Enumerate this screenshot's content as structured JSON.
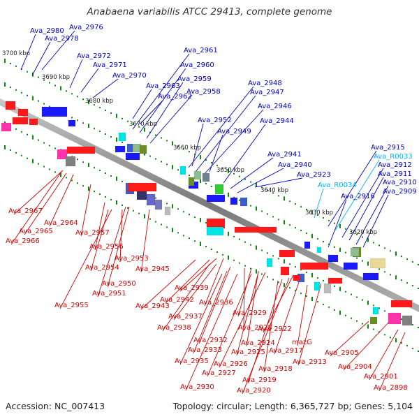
{
  "title": "Anabaena variabilis ATCC 29413, complete genome",
  "footer": {
    "accession": "Accession: NC_007413",
    "topology": "Topology: circular; Length: 6,365,727 bp; Genes: 5,104"
  },
  "colors": {
    "forward_label": "#0000c8",
    "reverse_label": "#d40000",
    "rna_label": "#00b4ff",
    "backbone": "#8a8a8a",
    "tick": "#0a8a0a"
  },
  "scale_labels": [
    "3700 kbp",
    "3690 kbp",
    "3680 kbp",
    "3670 kbp",
    "3660 kbp",
    "3650 kbp",
    "3640 kbp",
    "3630 kbp",
    "3620 kbp"
  ],
  "forward_labels": [
    "Ava_2980",
    "Ava_2976",
    "Ava_2978",
    "Ava_2972",
    "Ava_2971",
    "Ava_2970",
    "Ava_2961",
    "Ava_2960",
    "Ava_2963",
    "Ava_2959",
    "Ava_2962",
    "Ava_2958",
    "Ava_2948",
    "Ava_2947",
    "Ava_2946",
    "Ava_2952",
    "Ava_2949",
    "Ava_2944",
    "Ava_2941",
    "Ava_2940",
    "Ava_2923",
    "Ava_2916",
    "Ava_2915",
    "Ava_2912",
    "Ava_2911",
    "Ava_2910",
    "Ava_2909"
  ],
  "rna_labels": [
    "Ava_R0033",
    "Ava_R0034"
  ],
  "reverse_labels": [
    "Ava_2967",
    "Ava_2964",
    "Ava_2965",
    "Ava_2966",
    "Ava_2957",
    "Ava_2956",
    "Ava_2953",
    "Ava_2954",
    "Ava_2945",
    "Ava_2950",
    "Ava_2951",
    "Ava_2955",
    "Ava_2939",
    "Ava_2942",
    "Ava_2943",
    "Ava_2936",
    "Ava_2937",
    "Ava_2938",
    "Ava_2929",
    "Ava_2928",
    "Ava_2932",
    "Ava_2924",
    "Ava_2922",
    "Ava_2933",
    "Ava_2925",
    "Ava_2926",
    "Ava_2935",
    "Ava_2927",
    "Ava_2930",
    "Ava_2920",
    "Ava_2919",
    "Ava_2918",
    "Ava_2917",
    "mazG",
    "Ava_2913",
    "Ava_2905",
    "Ava_2904",
    "Ava_2901",
    "Ava_2898"
  ]
}
